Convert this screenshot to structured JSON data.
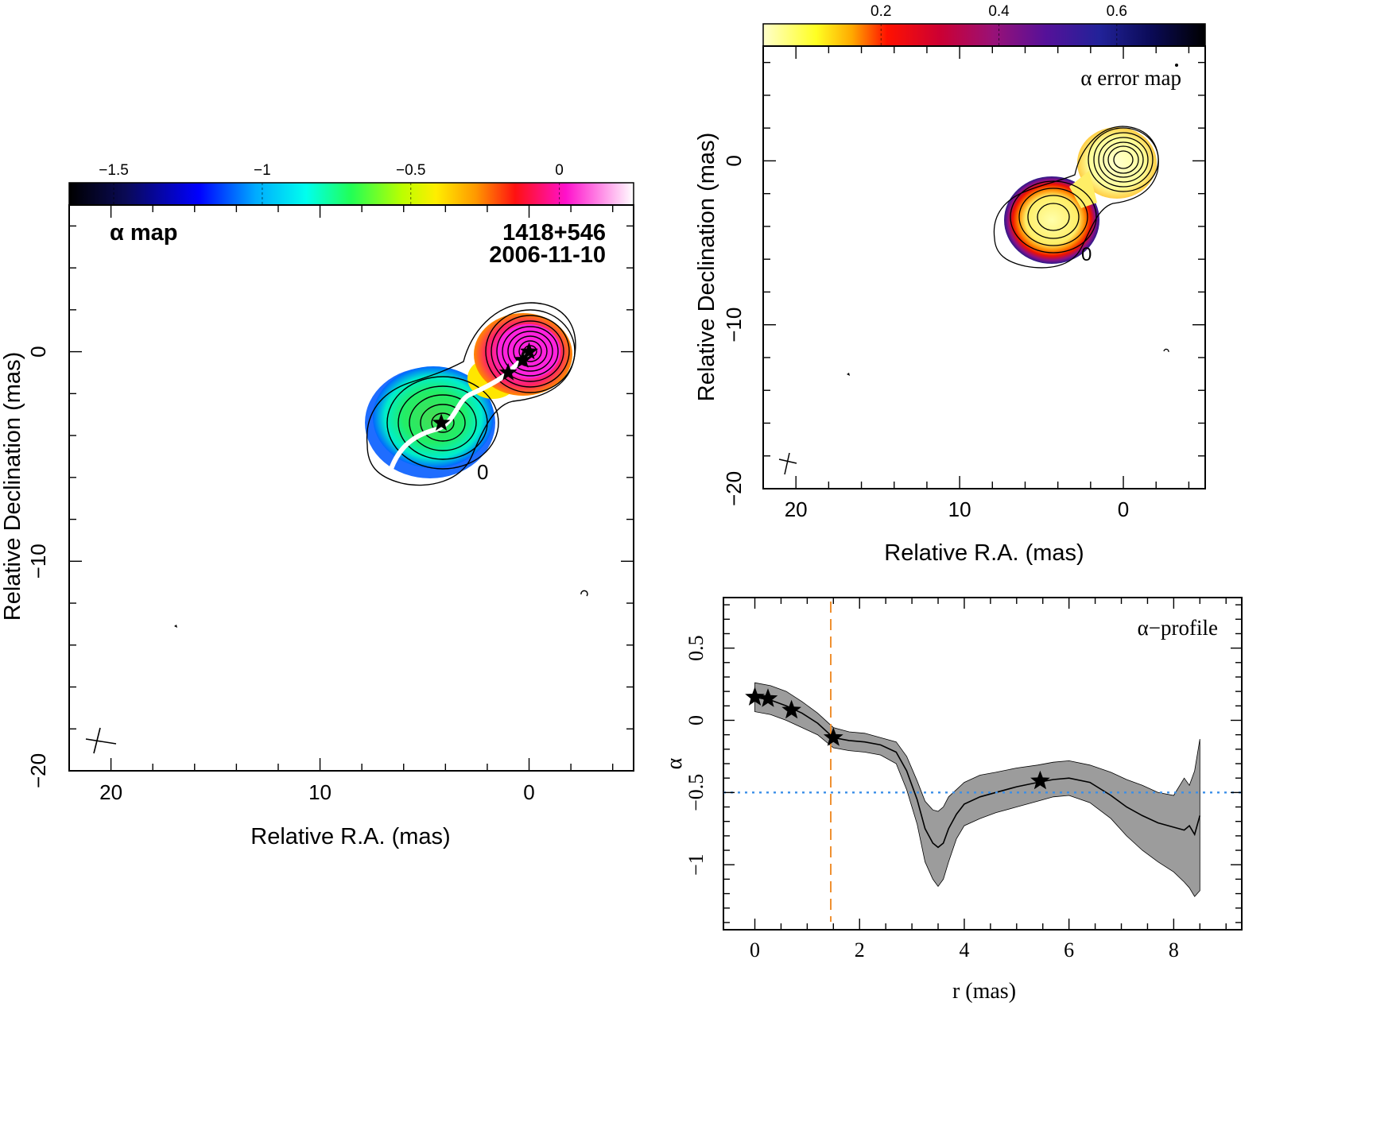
{
  "chart_data": [
    {
      "type": "heatmap",
      "label": "α map",
      "source": "1418+546",
      "date": "2006-11-10",
      "xlabel": "Relative R.A. (mas)",
      "ylabel": "Relative Declination (mas)",
      "xlim": [
        22,
        -5
      ],
      "ylim": [
        -20,
        7
      ],
      "xticks": [
        "20",
        "10",
        "0"
      ],
      "yticks": [
        "0",
        "−10",
        "−20"
      ],
      "colorbar": {
        "range": [
          -1.65,
          0.25
        ],
        "ticks": [
          "−1.5",
          "−1",
          "−0.5",
          "0"
        ],
        "colormap": "rainbow: black-blue-cyan-green-yellow-orange-red-magenta-white"
      },
      "ridge_line_color": "#ffffff",
      "components": [
        {
          "x": 0.0,
          "y": 0.0
        },
        {
          "x": 0.3,
          "y": -0.4
        },
        {
          "x": 1.0,
          "y": -1.0
        },
        {
          "x": 4.2,
          "y": -3.4
        }
      ],
      "core_label": "0",
      "core_label_pos": {
        "x": -2.2,
        "y": -5.7
      },
      "colors": {
        "core": "#ff2bd0",
        "mid": "#ff8c00",
        "jet": "#38d66b",
        "edge": "#2060ff"
      }
    },
    {
      "type": "heatmap",
      "label": "α error map",
      "xlabel": "Relative R.A. (mas)",
      "ylabel": "Relative Declination (mas)",
      "xlim": [
        22,
        -5
      ],
      "ylim": [
        -20,
        7
      ],
      "xticks": [
        "20",
        "10",
        "0"
      ],
      "yticks": [
        "0",
        "−10",
        "−20"
      ],
      "colorbar": {
        "range": [
          0.0,
          0.75
        ],
        "ticks": [
          "0.2",
          "0.4",
          "0.6"
        ],
        "colormap": "heat: yellow-red-purple-blue-black"
      },
      "core_label": "0",
      "colors": {
        "low": "#ffffa0",
        "mid": "#ff1a00",
        "high": "#701080",
        "edge": "#101080"
      }
    },
    {
      "type": "line",
      "label": "α−profile",
      "xlabel": "r (mas)",
      "ylabel": "α",
      "xlim": [
        -0.6,
        9.3
      ],
      "ylim": [
        -1.45,
        0.85
      ],
      "xticks": [
        "0",
        "2",
        "4",
        "6",
        "8"
      ],
      "yticks": [
        "0.5",
        "0",
        "−0.5",
        "−1"
      ],
      "series": [
        {
          "x": [
            0.0,
            0.3,
            0.6,
            0.9,
            1.2,
            1.5,
            1.8,
            2.1,
            2.4,
            2.7,
            2.9,
            3.1,
            3.25,
            3.4,
            3.5,
            3.6,
            3.7,
            3.85,
            4.0,
            4.3,
            4.6,
            5.0,
            5.4,
            5.7,
            6.0,
            6.4,
            6.8,
            7.1,
            7.4,
            7.7,
            8.0,
            8.2,
            8.3,
            8.4,
            8.5
          ],
          "y": [
            0.16,
            0.14,
            0.1,
            0.05,
            -0.02,
            -0.12,
            -0.14,
            -0.15,
            -0.17,
            -0.22,
            -0.35,
            -0.55,
            -0.75,
            -0.85,
            -0.88,
            -0.85,
            -0.75,
            -0.65,
            -0.58,
            -0.53,
            -0.5,
            -0.46,
            -0.43,
            -0.41,
            -0.4,
            -0.43,
            -0.52,
            -0.6,
            -0.66,
            -0.71,
            -0.74,
            -0.76,
            -0.73,
            -0.79,
            -0.66
          ]
        },
        {
          "name": "error band upper",
          "x": [
            0.0,
            0.3,
            0.6,
            0.9,
            1.2,
            1.5,
            1.8,
            2.1,
            2.4,
            2.7,
            2.9,
            3.1,
            3.25,
            3.4,
            3.5,
            3.6,
            3.7,
            3.85,
            4.0,
            4.3,
            4.6,
            5.0,
            5.4,
            5.7,
            6.0,
            6.4,
            6.8,
            7.1,
            7.4,
            7.7,
            8.0,
            8.2,
            8.3,
            8.4,
            8.5
          ],
          "y": [
            0.26,
            0.24,
            0.2,
            0.13,
            0.05,
            -0.05,
            -0.08,
            -0.09,
            -0.12,
            -0.15,
            -0.25,
            -0.42,
            -0.56,
            -0.62,
            -0.63,
            -0.6,
            -0.53,
            -0.48,
            -0.43,
            -0.38,
            -0.36,
            -0.33,
            -0.31,
            -0.29,
            -0.28,
            -0.31,
            -0.36,
            -0.41,
            -0.45,
            -0.5,
            -0.52,
            -0.4,
            -0.45,
            -0.35,
            -0.13
          ]
        },
        {
          "name": "error band lower",
          "x": [
            0.0,
            0.3,
            0.6,
            0.9,
            1.2,
            1.5,
            1.8,
            2.1,
            2.4,
            2.7,
            2.9,
            3.1,
            3.25,
            3.4,
            3.5,
            3.6,
            3.7,
            3.85,
            4.0,
            4.3,
            4.6,
            5.0,
            5.4,
            5.7,
            6.0,
            6.4,
            6.8,
            7.1,
            7.4,
            7.7,
            8.0,
            8.2,
            8.3,
            8.4,
            8.5
          ],
          "y": [
            0.06,
            0.04,
            0.0,
            -0.05,
            -0.1,
            -0.19,
            -0.21,
            -0.22,
            -0.24,
            -0.3,
            -0.48,
            -0.72,
            -0.98,
            -1.1,
            -1.15,
            -1.1,
            -0.98,
            -0.82,
            -0.73,
            -0.68,
            -0.64,
            -0.6,
            -0.56,
            -0.53,
            -0.52,
            -0.57,
            -0.68,
            -0.8,
            -0.9,
            -0.98,
            -1.05,
            -1.12,
            -1.16,
            -1.22,
            -1.18
          ]
        }
      ],
      "stars": [
        {
          "x": 0.0,
          "y": 0.16
        },
        {
          "x": 0.25,
          "y": 0.15
        },
        {
          "x": 0.7,
          "y": 0.07
        },
        {
          "x": 1.5,
          "y": -0.12
        },
        {
          "x": 5.45,
          "y": -0.42
        }
      ],
      "vline": {
        "x": 1.45,
        "color": "#f09030",
        "style": "dashed"
      },
      "hline": {
        "y": -0.5,
        "color": "#3a8fe8",
        "style": "dotted"
      },
      "band_color": "#9c9c9c"
    }
  ]
}
